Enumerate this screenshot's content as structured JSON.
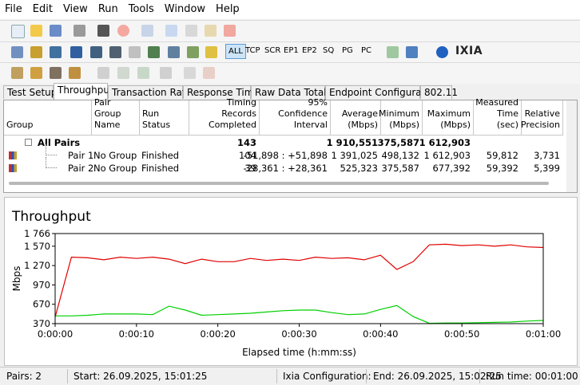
{
  "menu": [
    "File",
    "Edit",
    "View",
    "Run",
    "Tools",
    "Window",
    "Help"
  ],
  "toolbar": {
    "protocols": [
      "ALL",
      "TCP",
      "SCR",
      "EP1",
      "EP2",
      "SQ",
      "PG",
      "PC"
    ],
    "brand": "IXIA"
  },
  "tabs": [
    "Test Setup",
    "Throughput",
    "Transaction Rate",
    "Response Time",
    "Raw Data Totals",
    "Endpoint Configuration",
    "802.11"
  ],
  "active_tab": 1,
  "table": {
    "columns": [
      "Group",
      "Pair Group Name",
      "Run Status",
      "Timing Records Completed",
      "95% Confidence Interval",
      "Average (Mbps)",
      "Minimum (Mbps)",
      "Maximum (Mbps)",
      "Measured Time (sec)",
      "Relative Precision"
    ],
    "rows": [
      [
        "All Pairs",
        null,
        null,
        "143",
        null,
        "1 910,551",
        "375,587",
        "1 612,903",
        null,
        null
      ],
      [
        "Pair 1",
        "No Group",
        "Finished",
        "104",
        "-51,898 : +51,898",
        "1 391,025",
        "498,132",
        "1 612,903",
        "59,812",
        "3,731"
      ],
      [
        "Pair 2",
        "No Group",
        "Finished",
        "39",
        "-28,361 : +28,361",
        "525,323",
        "375,587",
        "677,392",
        "59,392",
        "5,399"
      ]
    ]
  },
  "chart_data": {
    "type": "line",
    "title": "Throughput",
    "x_label": "Elapsed time (h:mm:ss)",
    "y_label": "Mbps",
    "x": [
      0,
      2,
      4,
      6,
      8,
      10,
      12,
      14,
      16,
      18,
      20,
      22,
      24,
      26,
      28,
      30,
      32,
      34,
      36,
      38,
      40,
      42,
      44,
      46,
      48,
      50,
      52,
      54,
      56,
      58,
      60
    ],
    "xlim": [
      0,
      60
    ],
    "xticks": [
      {
        "value": 0,
        "label": "0:00:00"
      },
      {
        "value": 10,
        "label": "0:00:10"
      },
      {
        "value": 20,
        "label": "0:00:20"
      },
      {
        "value": 30,
        "label": "0:00:30"
      },
      {
        "value": 40,
        "label": "0:00:40"
      },
      {
        "value": 50,
        "label": "0:00:50"
      },
      {
        "value": 60,
        "label": "0:01:00"
      }
    ],
    "ylim": [
      370,
      1766
    ],
    "yticks": [
      370,
      670,
      970,
      {
        "value": 1270,
        "label": "1 270"
      },
      {
        "value": 1570,
        "label": "1 570"
      },
      {
        "value": 1766,
        "label": "1 766"
      }
    ],
    "series": [
      {
        "color": "#e00000",
        "values": [
          470,
          1400,
          1390,
          1360,
          1400,
          1380,
          1400,
          1370,
          1300,
          1370,
          1330,
          1330,
          1380,
          1350,
          1370,
          1350,
          1400,
          1380,
          1390,
          1360,
          1430,
          1210,
          1330,
          1590,
          1600,
          1580,
          1590,
          1570,
          1590,
          1560,
          1550
        ]
      },
      {
        "color": "#00d000",
        "values": [
          490,
          490,
          500,
          520,
          520,
          520,
          510,
          640,
          580,
          500,
          510,
          520,
          530,
          550,
          570,
          580,
          580,
          540,
          510,
          520,
          590,
          650,
          480,
          375,
          380,
          380,
          385,
          390,
          395,
          410,
          420
        ]
      }
    ]
  },
  "status": [
    "Pairs: 2",
    "Start: 26.09.2025, 15:01:25",
    "Ixia Configuration:",
    "End: 26.09.2025, 15:02:25",
    "Run time: 00:01:00"
  ]
}
